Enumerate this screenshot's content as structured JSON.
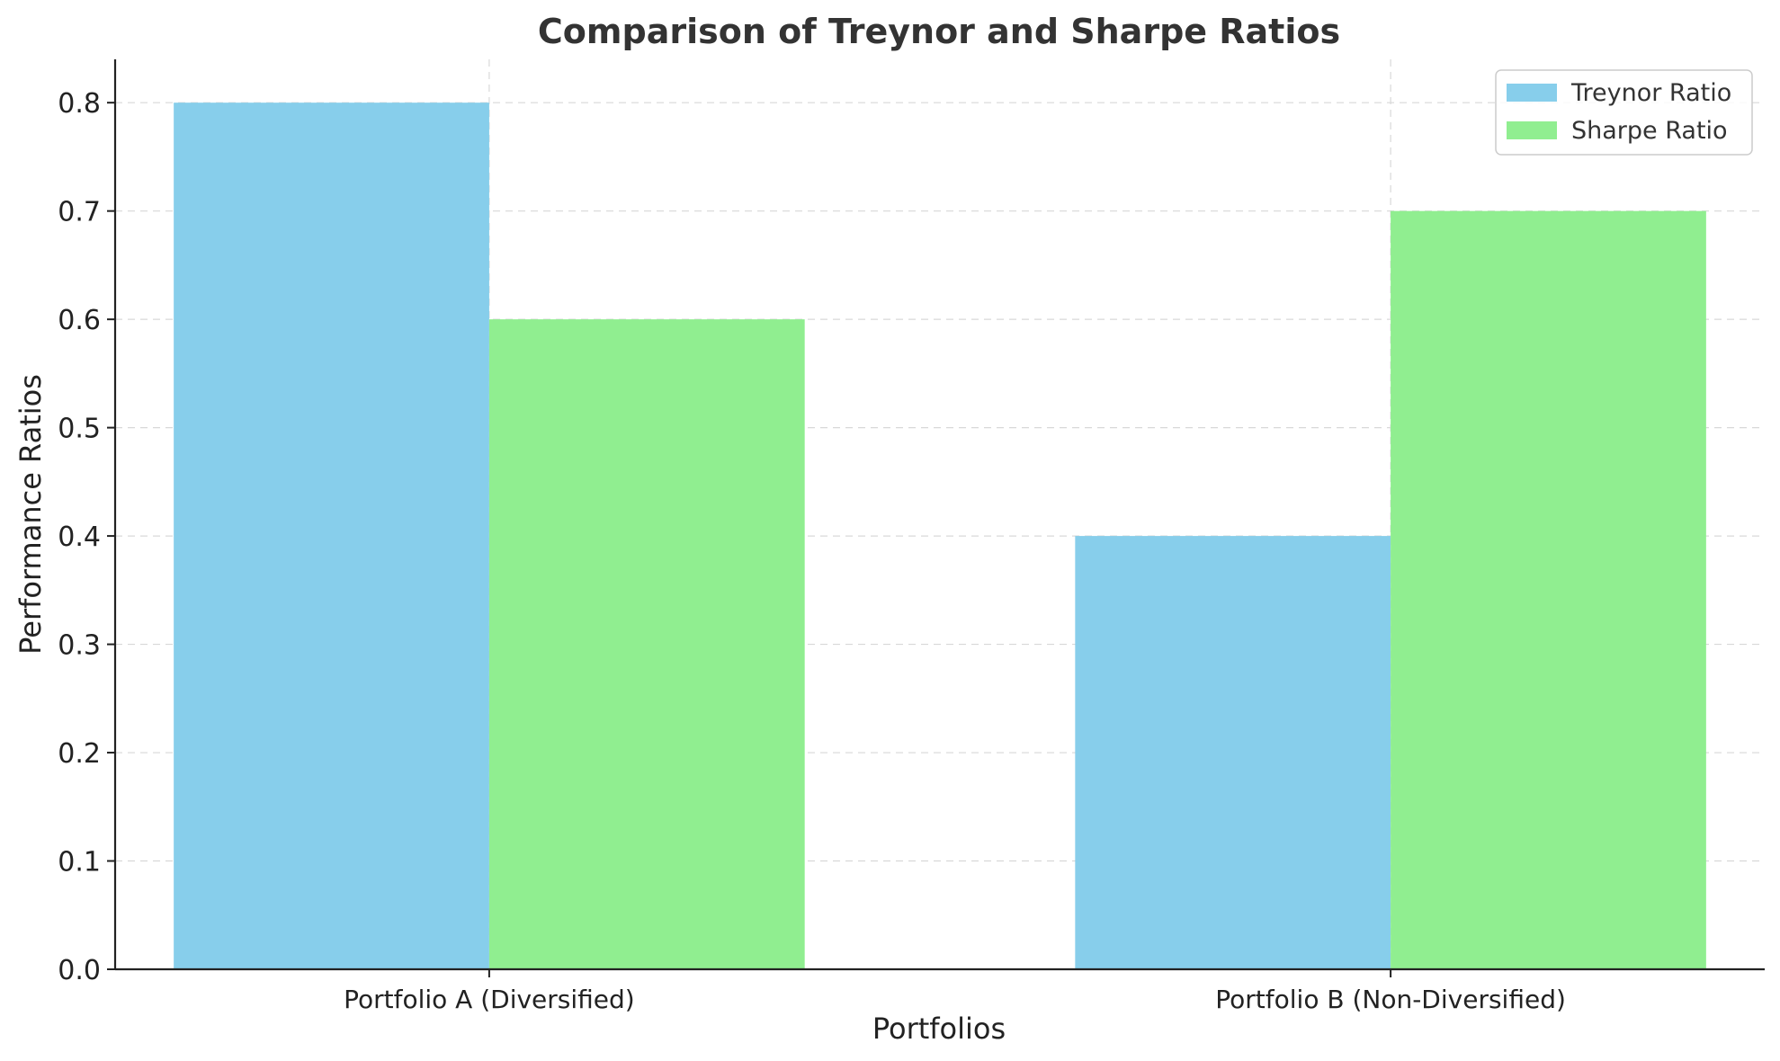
{
  "chart_data": {
    "type": "bar",
    "title": "Comparison of Treynor and Sharpe Ratios",
    "xlabel": "Portfolios",
    "ylabel": "Performance Ratios",
    "categories": [
      "Portfolio A (Diversified)",
      "Portfolio B (Non-Diversified)"
    ],
    "series": [
      {
        "name": "Treynor Ratio",
        "color": "#87CEEB",
        "values": [
          0.8,
          0.4
        ]
      },
      {
        "name": "Sharpe Ratio",
        "color": "#90EE90",
        "values": [
          0.6,
          0.7
        ]
      }
    ],
    "ylim": [
      0,
      0.84
    ],
    "yticks": [
      "0.0",
      "0.1",
      "0.2",
      "0.3",
      "0.4",
      "0.5",
      "0.6",
      "0.7",
      "0.8"
    ],
    "grid": true,
    "legend_position": "top-right"
  }
}
